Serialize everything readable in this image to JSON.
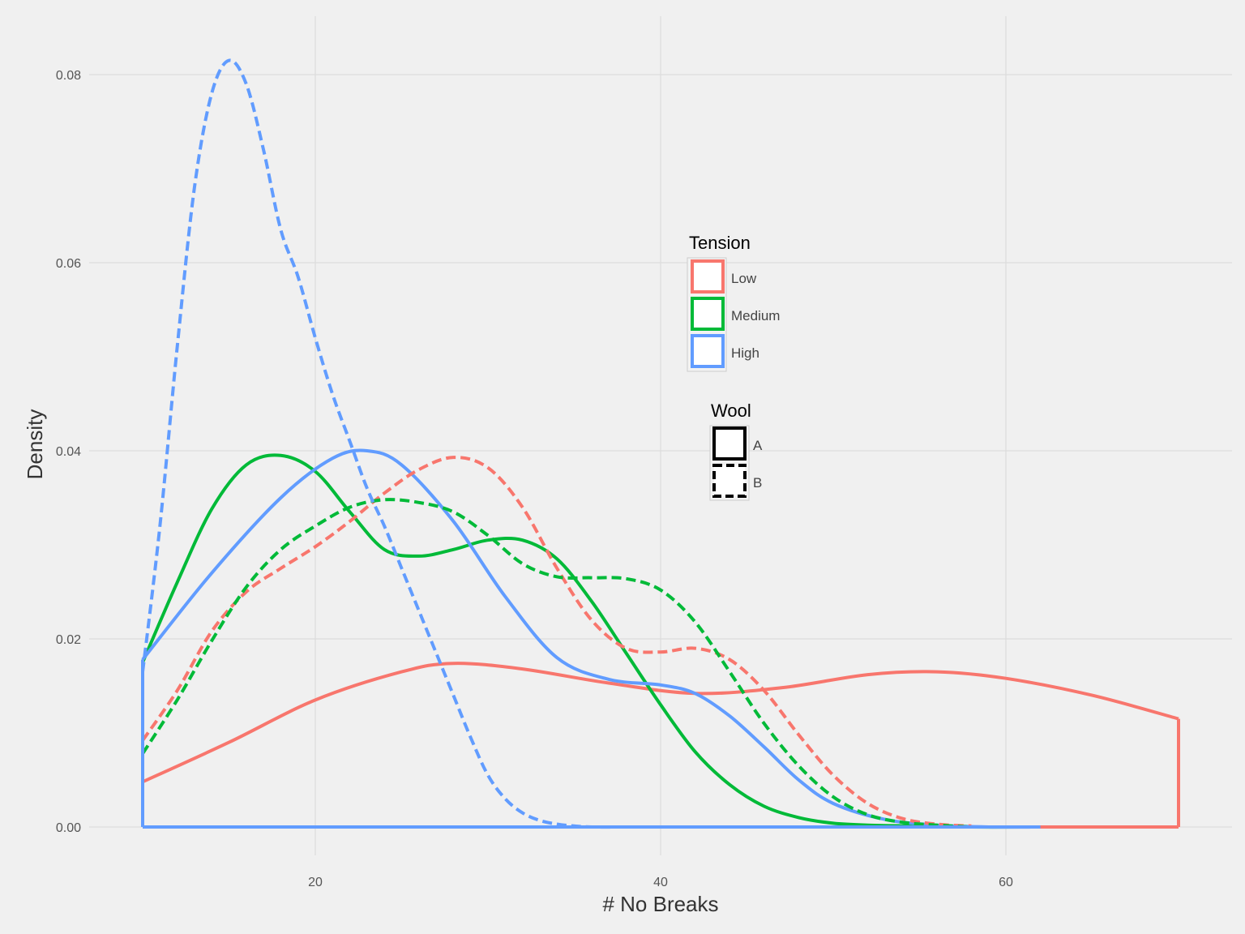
{
  "chart_data": {
    "type": "line",
    "title": "",
    "xlabel": "# No Breaks",
    "ylabel": "Density",
    "xlim": [
      10,
      70
    ],
    "ylim": [
      0,
      0.08
    ],
    "x_ticks": [
      20,
      40,
      60
    ],
    "x_tick_labels": [
      "20",
      "40",
      "60"
    ],
    "y_ticks": [
      0.0,
      0.02,
      0.04,
      0.06,
      0.08
    ],
    "y_tick_labels": [
      "0.00",
      "0.02",
      "0.04",
      "0.06",
      "0.08"
    ],
    "grid": true,
    "legends": [
      {
        "title": "Tension",
        "placement": "center-right",
        "entries": [
          {
            "label": "Low",
            "color": "#F8766D"
          },
          {
            "label": "Medium",
            "color": "#00BA38"
          },
          {
            "label": "High",
            "color": "#619CFF"
          }
        ]
      },
      {
        "title": "Wool",
        "placement": "center-right",
        "entries": [
          {
            "label": "A",
            "linetype": "solid",
            "color": "#000000"
          },
          {
            "label": "B",
            "linetype": "dashed",
            "color": "#000000"
          }
        ]
      }
    ],
    "series": [
      {
        "tension": "Low",
        "wool": "A",
        "color": "#F8766D",
        "linetype": "solid",
        "x": [
          10,
          15,
          20,
          25,
          28,
          32,
          37,
          42,
          47,
          52,
          56,
          60,
          65,
          70
        ],
        "y": [
          0.0048,
          0.009,
          0.0135,
          0.0165,
          0.0174,
          0.0168,
          0.0153,
          0.0142,
          0.0148,
          0.0162,
          0.0165,
          0.0158,
          0.014,
          0.0115
        ]
      },
      {
        "tension": "Medium",
        "wool": "A",
        "color": "#00BA38",
        "linetype": "solid",
        "x": [
          10,
          12,
          14,
          16,
          18,
          20,
          22,
          24,
          26,
          28,
          30,
          32,
          34,
          36,
          38,
          40,
          42,
          44,
          46,
          48,
          50,
          52,
          55,
          58,
          61
        ],
        "y": [
          0.0175,
          0.026,
          0.0338,
          0.0385,
          0.0395,
          0.0378,
          0.0335,
          0.0295,
          0.0288,
          0.0295,
          0.0305,
          0.0305,
          0.0285,
          0.024,
          0.0185,
          0.013,
          0.008,
          0.0045,
          0.0022,
          0.001,
          0.0004,
          0.0002,
          0.0001,
          0.0,
          0.0
        ]
      },
      {
        "tension": "High",
        "wool": "A",
        "color": "#619CFF",
        "linetype": "solid",
        "x": [
          10,
          14,
          18,
          21,
          23,
          25,
          28,
          31,
          34,
          37,
          40,
          42,
          44,
          46,
          48,
          50,
          53,
          56,
          59,
          62
        ],
        "y": [
          0.0178,
          0.027,
          0.035,
          0.0392,
          0.04,
          0.0385,
          0.0325,
          0.0245,
          0.018,
          0.0157,
          0.0151,
          0.0142,
          0.0118,
          0.0085,
          0.005,
          0.0025,
          0.0008,
          0.0002,
          0.0,
          0.0
        ]
      },
      {
        "tension": "Low",
        "wool": "B",
        "color": "#F8766D",
        "linetype": "dashed",
        "x": [
          10,
          12,
          14,
          16,
          18,
          20,
          22,
          24,
          26,
          28,
          30,
          32,
          34,
          36,
          38,
          40,
          42,
          44,
          46,
          48,
          50,
          52,
          54,
          56,
          58
        ],
        "y": [
          0.0092,
          0.0145,
          0.0208,
          0.025,
          0.0275,
          0.0298,
          0.0325,
          0.0355,
          0.038,
          0.0393,
          0.0382,
          0.034,
          0.0275,
          0.022,
          0.019,
          0.0186,
          0.019,
          0.0178,
          0.0145,
          0.0098,
          0.0055,
          0.0025,
          0.0009,
          0.0003,
          0.0001
        ]
      },
      {
        "tension": "Medium",
        "wool": "B",
        "color": "#00BA38",
        "linetype": "dashed",
        "x": [
          10,
          12,
          14,
          16,
          18,
          20,
          22,
          24,
          26,
          28,
          30,
          32,
          34,
          36,
          38,
          40,
          42,
          44,
          46,
          48,
          50,
          52,
          54,
          56,
          58
        ],
        "y": [
          0.0078,
          0.0135,
          0.0198,
          0.0255,
          0.0295,
          0.032,
          0.034,
          0.0348,
          0.0345,
          0.0335,
          0.031,
          0.028,
          0.0266,
          0.0265,
          0.0264,
          0.0252,
          0.0218,
          0.0165,
          0.011,
          0.0065,
          0.0032,
          0.0013,
          0.0005,
          0.0002,
          0.0
        ]
      },
      {
        "tension": "High",
        "wool": "B",
        "color": "#619CFF",
        "linetype": "dashed",
        "x": [
          10,
          11,
          12,
          13,
          14,
          15,
          16,
          17,
          18,
          19,
          20,
          21,
          22,
          23,
          24,
          25,
          26,
          27,
          28,
          29,
          30,
          31,
          32,
          33,
          34,
          35,
          36,
          38
        ],
        "y": [
          0.0165,
          0.032,
          0.051,
          0.068,
          0.078,
          0.0815,
          0.079,
          0.072,
          0.0635,
          0.0585,
          0.052,
          0.046,
          0.041,
          0.036,
          0.032,
          0.0275,
          0.023,
          0.0185,
          0.014,
          0.0095,
          0.0055,
          0.003,
          0.0015,
          0.0007,
          0.0003,
          0.0001,
          0.0,
          0.0
        ]
      }
    ]
  }
}
